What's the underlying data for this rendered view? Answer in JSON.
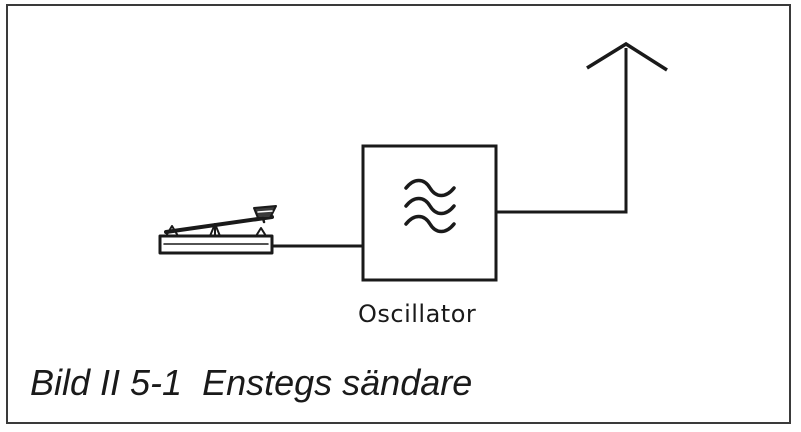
{
  "diagram": {
    "block_label": "Oscillator",
    "caption": "Bild II 5-1  Enstegs sändare",
    "icons": {
      "key": "morse-key-icon",
      "wave": "sine-wave-symbol-icon",
      "antenna": "antenna-icon"
    },
    "colors": {
      "line": "#1a1a1a",
      "background": "#ffffff"
    }
  }
}
